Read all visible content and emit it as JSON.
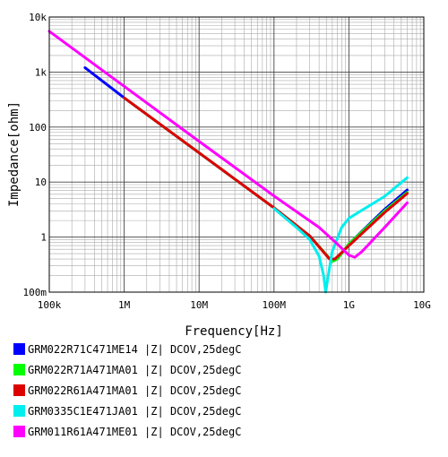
{
  "chart_data": {
    "type": "line",
    "xscale": "log",
    "yscale": "log",
    "xlim": [
      100000,
      10000000000
    ],
    "ylim": [
      0.1,
      10000
    ],
    "xlabel": "Frequency[Hz]",
    "ylabel": "Impedance[ohm]",
    "xticks": [
      {
        "value": 100000,
        "label": "100k"
      },
      {
        "value": 1000000,
        "label": "1M"
      },
      {
        "value": 10000000,
        "label": "10M"
      },
      {
        "value": 100000000,
        "label": "100M"
      },
      {
        "value": 1000000000,
        "label": "1G"
      },
      {
        "value": 10000000000,
        "label": "10G"
      }
    ],
    "yticks": [
      {
        "value": 0.1,
        "label": "100m"
      },
      {
        "value": 1,
        "label": "1"
      },
      {
        "value": 10,
        "label": "10"
      },
      {
        "value": 100,
        "label": "100"
      },
      {
        "value": 1000,
        "label": "1k"
      },
      {
        "value": 10000,
        "label": "10k"
      }
    ],
    "grid": true,
    "legend_position": "below",
    "series": [
      {
        "name": "GRM022R71C471ME14  |Z| DCOV,25degC",
        "color": "#0000ff",
        "x": [
          300000,
          1000000,
          10000000,
          100000000,
          300000000,
          600000000,
          700000000,
          1000000000,
          3000000000,
          6000000000
        ],
        "y": [
          1200.0,
          340.0,
          34.0,
          3.4,
          1.05,
          0.36,
          0.4,
          0.75,
          3.2,
          7.2
        ]
      },
      {
        "name": "GRM022R71A471MA01  |Z| DCOV,25degC",
        "color": "#00ff00",
        "x": [
          1000000,
          10000000,
          100000000,
          300000000,
          600000000,
          700000000,
          1000000000,
          3000000000,
          6000000000
        ],
        "y": [
          340.0,
          34.0,
          3.4,
          1.05,
          0.36,
          0.4,
          0.75,
          3.0,
          6.5
        ]
      },
      {
        "name": "GRM022R61A471MA01  |Z| DCOV,25degC",
        "color": "#dd0000",
        "x": [
          1000000,
          10000000,
          100000000,
          300000000,
          550000000,
          650000000,
          1000000000,
          3000000000,
          6000000000
        ],
        "y": [
          340.0,
          34.0,
          3.4,
          1.05,
          0.4,
          0.4,
          0.7,
          2.8,
          6.2
        ]
      },
      {
        "name": "GRM0335C1E471JA01  |Z| DCOV,25degC",
        "color": "#00eeee",
        "x": [
          100000000,
          200000000,
          300000000,
          400000000,
          460000000,
          490000000,
          530000000,
          600000000,
          800000000,
          1000000000,
          3000000000,
          6000000000
        ],
        "y": [
          3.3,
          1.5,
          0.9,
          0.45,
          0.2,
          0.1,
          0.2,
          0.55,
          1.5,
          2.2,
          5.5,
          12
        ]
      },
      {
        "name": "GRM011R61A471ME01  |Z| DCOV,25degC",
        "color": "#ff00ff",
        "x": [
          100000,
          1000000,
          10000000,
          100000000,
          400000000,
          700000000,
          1000000000,
          1200000000,
          1500000000,
          3000000000,
          6000000000
        ],
        "y": [
          5500.0,
          550.0,
          55.0,
          5.6,
          1.5,
          0.75,
          0.47,
          0.43,
          0.55,
          1.5,
          4.2
        ]
      }
    ]
  }
}
